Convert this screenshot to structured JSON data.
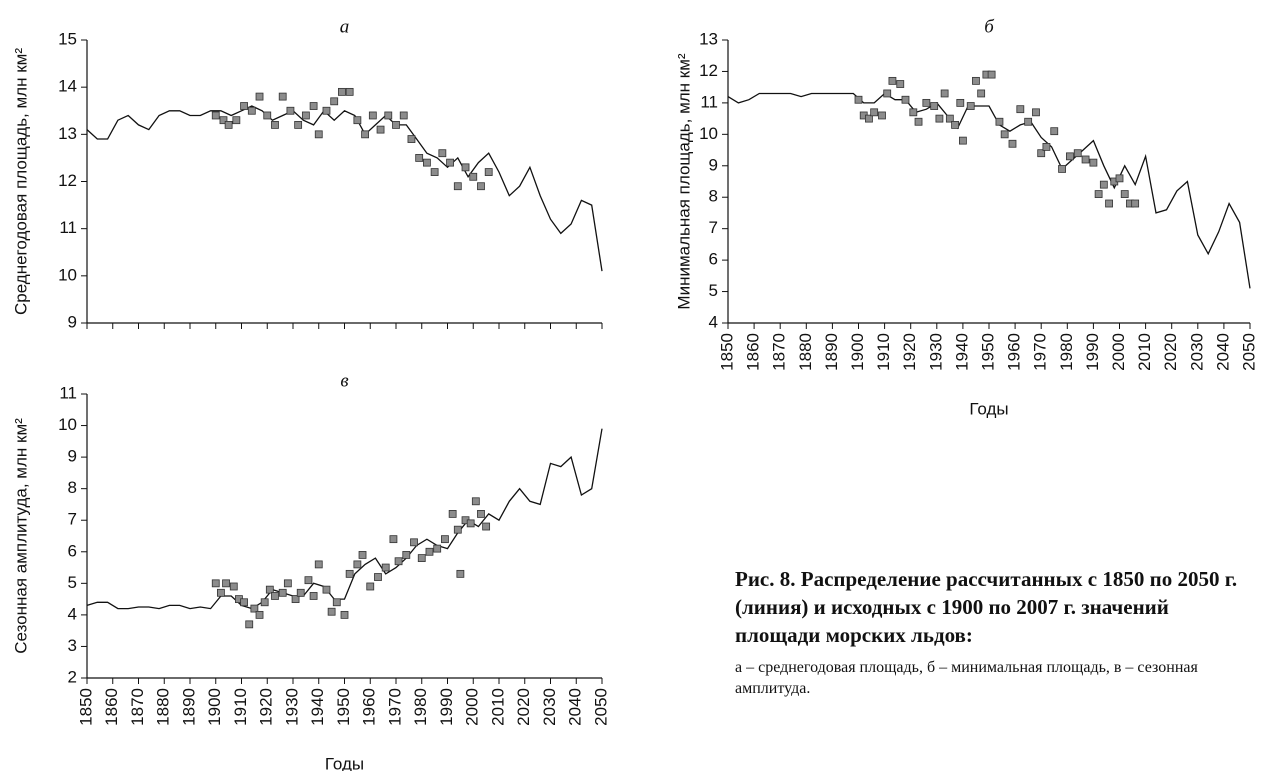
{
  "chart_data": [
    {
      "type": "line",
      "title": "а",
      "ylabel": "Среднегодовая площадь, млн км²",
      "ylim": [
        9,
        15
      ],
      "yticks": [
        9,
        10,
        11,
        12,
        13,
        14,
        15
      ],
      "xlim": [
        1850,
        2050
      ],
      "xticks": [
        1850,
        1860,
        1870,
        1880,
        1890,
        1900,
        1910,
        1920,
        1930,
        1940,
        1950,
        1960,
        1970,
        1980,
        1990,
        2000,
        2010,
        2020,
        2030,
        2040,
        2050
      ],
      "show_xtick_labels": false,
      "series": [
        {
          "style": "line",
          "color": "#111111",
          "x": [
            1850,
            1854,
            1858,
            1862,
            1866,
            1870,
            1874,
            1878,
            1882,
            1886,
            1890,
            1894,
            1898,
            1902,
            1906,
            1910,
            1914,
            1918,
            1922,
            1926,
            1930,
            1934,
            1938,
            1942,
            1946,
            1950,
            1954,
            1958,
            1962,
            1966,
            1970,
            1974,
            1978,
            1982,
            1986,
            1990,
            1994,
            1998,
            2002,
            2006,
            2010,
            2014,
            2018,
            2022,
            2026,
            2030,
            2034,
            2038,
            2042,
            2046,
            2050
          ],
          "values": [
            13.1,
            12.9,
            12.9,
            13.3,
            13.4,
            13.2,
            13.1,
            13.4,
            13.5,
            13.5,
            13.4,
            13.4,
            13.5,
            13.5,
            13.4,
            13.5,
            13.6,
            13.5,
            13.3,
            13.4,
            13.5,
            13.3,
            13.2,
            13.5,
            13.3,
            13.5,
            13.4,
            13.0,
            13.2,
            13.4,
            13.2,
            13.2,
            12.9,
            12.6,
            12.5,
            12.3,
            12.5,
            12.1,
            12.4,
            12.6,
            12.2,
            11.7,
            11.9,
            12.3,
            11.7,
            11.2,
            10.9,
            11.1,
            11.6,
            11.5,
            10.1
          ]
        },
        {
          "style": "markers",
          "color": "#8c8c8c",
          "x": [
            1900,
            1903,
            1905,
            1908,
            1911,
            1914,
            1917,
            1920,
            1923,
            1926,
            1929,
            1932,
            1935,
            1938,
            1940,
            1943,
            1946,
            1949,
            1952,
            1955,
            1958,
            1961,
            1964,
            1967,
            1970,
            1973,
            1976,
            1979,
            1982,
            1985,
            1988,
            1991,
            1994,
            1997,
            2000,
            2003,
            2006
          ],
          "values": [
            13.4,
            13.3,
            13.2,
            13.3,
            13.6,
            13.5,
            13.8,
            13.4,
            13.2,
            13.8,
            13.5,
            13.2,
            13.4,
            13.6,
            13.0,
            13.5,
            13.7,
            13.9,
            13.9,
            13.3,
            13.0,
            13.4,
            13.1,
            13.4,
            13.2,
            13.4,
            12.9,
            12.5,
            12.4,
            12.2,
            12.6,
            12.4,
            11.9,
            12.3,
            12.1,
            11.9,
            12.2
          ]
        }
      ]
    },
    {
      "type": "line",
      "title": "б",
      "ylabel": "Минимальная площадь, млн км²",
      "xlabel": "Годы",
      "ylim": [
        4,
        13
      ],
      "yticks": [
        4,
        5,
        6,
        7,
        8,
        9,
        10,
        11,
        12,
        13
      ],
      "xlim": [
        1850,
        2050
      ],
      "xticks": [
        1850,
        1860,
        1870,
        1880,
        1890,
        1900,
        1910,
        1920,
        1930,
        1940,
        1950,
        1960,
        1970,
        1980,
        1990,
        2000,
        2010,
        2020,
        2030,
        2040,
        2050
      ],
      "show_xtick_labels": true,
      "series": [
        {
          "style": "line",
          "color": "#111111",
          "x": [
            1850,
            1854,
            1858,
            1862,
            1866,
            1870,
            1874,
            1878,
            1882,
            1886,
            1890,
            1894,
            1898,
            1902,
            1906,
            1910,
            1914,
            1918,
            1922,
            1926,
            1930,
            1934,
            1938,
            1942,
            1946,
            1950,
            1954,
            1958,
            1962,
            1966,
            1970,
            1974,
            1978,
            1982,
            1986,
            1990,
            1994,
            1998,
            2002,
            2006,
            2010,
            2014,
            2018,
            2022,
            2026,
            2030,
            2034,
            2038,
            2042,
            2046,
            2050
          ],
          "values": [
            11.2,
            11.0,
            11.1,
            11.3,
            11.3,
            11.3,
            11.3,
            11.2,
            11.3,
            11.3,
            11.3,
            11.3,
            11.3,
            11.0,
            11.0,
            11.3,
            11.1,
            11.1,
            10.7,
            10.8,
            11.0,
            10.6,
            10.2,
            10.9,
            10.9,
            10.9,
            10.3,
            10.1,
            10.3,
            10.4,
            9.9,
            9.6,
            8.9,
            9.2,
            9.5,
            9.8,
            9.0,
            8.3,
            9.0,
            8.4,
            9.3,
            7.5,
            7.6,
            8.2,
            8.5,
            6.8,
            6.2,
            6.9,
            7.8,
            7.2,
            5.1
          ]
        },
        {
          "style": "markers",
          "color": "#8c8c8c",
          "x": [
            1900,
            1902,
            1904,
            1906,
            1909,
            1911,
            1913,
            1916,
            1918,
            1921,
            1923,
            1926,
            1929,
            1931,
            1933,
            1935,
            1937,
            1939,
            1940,
            1943,
            1945,
            1947,
            1949,
            1951,
            1954,
            1956,
            1959,
            1962,
            1965,
            1968,
            1970,
            1972,
            1975,
            1978,
            1981,
            1984,
            1987,
            1990,
            1992,
            1994,
            1996,
            1998,
            2000,
            2002,
            2004,
            2006
          ],
          "values": [
            11.1,
            10.6,
            10.5,
            10.7,
            10.6,
            11.3,
            11.7,
            11.6,
            11.1,
            10.7,
            10.4,
            11.0,
            10.9,
            10.5,
            11.3,
            10.5,
            10.3,
            11.0,
            9.8,
            10.9,
            11.7,
            11.3,
            11.9,
            11.9,
            10.4,
            10.0,
            9.7,
            10.8,
            10.4,
            10.7,
            9.4,
            9.6,
            10.1,
            8.9,
            9.3,
            9.4,
            9.2,
            9.1,
            8.1,
            8.4,
            7.8,
            8.5,
            8.6,
            8.1,
            7.8,
            7.8
          ]
        }
      ]
    },
    {
      "type": "line",
      "title": "в",
      "ylabel": "Сезонная амплитуда, млн км²",
      "xlabel": "Годы",
      "ylim": [
        2,
        11
      ],
      "yticks": [
        2,
        3,
        4,
        5,
        6,
        7,
        8,
        9,
        10,
        11
      ],
      "xlim": [
        1850,
        2050
      ],
      "xticks": [
        1850,
        1860,
        1870,
        1880,
        1890,
        1900,
        1910,
        1920,
        1930,
        1940,
        1950,
        1960,
        1970,
        1980,
        1990,
        2000,
        2010,
        2020,
        2030,
        2040,
        2050
      ],
      "show_xtick_labels": true,
      "series": [
        {
          "style": "line",
          "color": "#111111",
          "x": [
            1850,
            1854,
            1858,
            1862,
            1866,
            1870,
            1874,
            1878,
            1882,
            1886,
            1890,
            1894,
            1898,
            1902,
            1906,
            1910,
            1914,
            1918,
            1922,
            1926,
            1930,
            1934,
            1938,
            1942,
            1946,
            1950,
            1954,
            1958,
            1962,
            1966,
            1970,
            1974,
            1978,
            1982,
            1986,
            1990,
            1994,
            1998,
            2002,
            2006,
            2010,
            2014,
            2018,
            2022,
            2026,
            2030,
            2034,
            2038,
            2042,
            2046,
            2050
          ],
          "values": [
            4.3,
            4.4,
            4.4,
            4.2,
            4.2,
            4.25,
            4.25,
            4.2,
            4.3,
            4.3,
            4.2,
            4.25,
            4.2,
            4.6,
            4.6,
            4.3,
            4.2,
            4.4,
            4.8,
            4.7,
            4.6,
            4.6,
            5.0,
            4.9,
            4.5,
            4.5,
            5.3,
            5.6,
            5.8,
            5.3,
            5.5,
            5.8,
            6.2,
            6.4,
            6.2,
            6.1,
            6.6,
            7.0,
            6.8,
            7.2,
            7.0,
            7.6,
            8.0,
            7.6,
            7.5,
            8.8,
            8.7,
            9.0,
            7.8,
            8.0,
            9.9
          ]
        },
        {
          "style": "markers",
          "color": "#8c8c8c",
          "x": [
            1900,
            1902,
            1904,
            1907,
            1909,
            1911,
            1913,
            1915,
            1917,
            1919,
            1921,
            1923,
            1926,
            1928,
            1931,
            1933,
            1936,
            1938,
            1940,
            1943,
            1945,
            1947,
            1950,
            1952,
            1955,
            1957,
            1960,
            1963,
            1966,
            1969,
            1971,
            1974,
            1977,
            1980,
            1983,
            1986,
            1989,
            1992,
            1994,
            1995,
            1997,
            1999,
            2001,
            2003,
            2005
          ],
          "values": [
            5.0,
            4.7,
            5.0,
            4.9,
            4.5,
            4.4,
            3.7,
            4.2,
            4.0,
            4.4,
            4.8,
            4.6,
            4.7,
            5.0,
            4.5,
            4.7,
            5.1,
            4.6,
            5.6,
            4.8,
            4.1,
            4.4,
            4.0,
            5.3,
            5.6,
            5.9,
            4.9,
            5.2,
            5.5,
            6.4,
            5.7,
            5.9,
            6.3,
            5.8,
            6.0,
            6.1,
            6.4,
            7.2,
            6.7,
            5.3,
            7.0,
            6.9,
            7.6,
            7.2,
            6.8
          ]
        }
      ]
    }
  ],
  "caption": {
    "title": "Рис. 8. Распределение рассчитанных с 1850 по 2050 г. (линия) и исходных с 1900 по 2007 г. значений площади морских льдов:",
    "text": "а – среднегодовая площадь, б – минимальная площадь, в – сезонная амплитуда."
  }
}
